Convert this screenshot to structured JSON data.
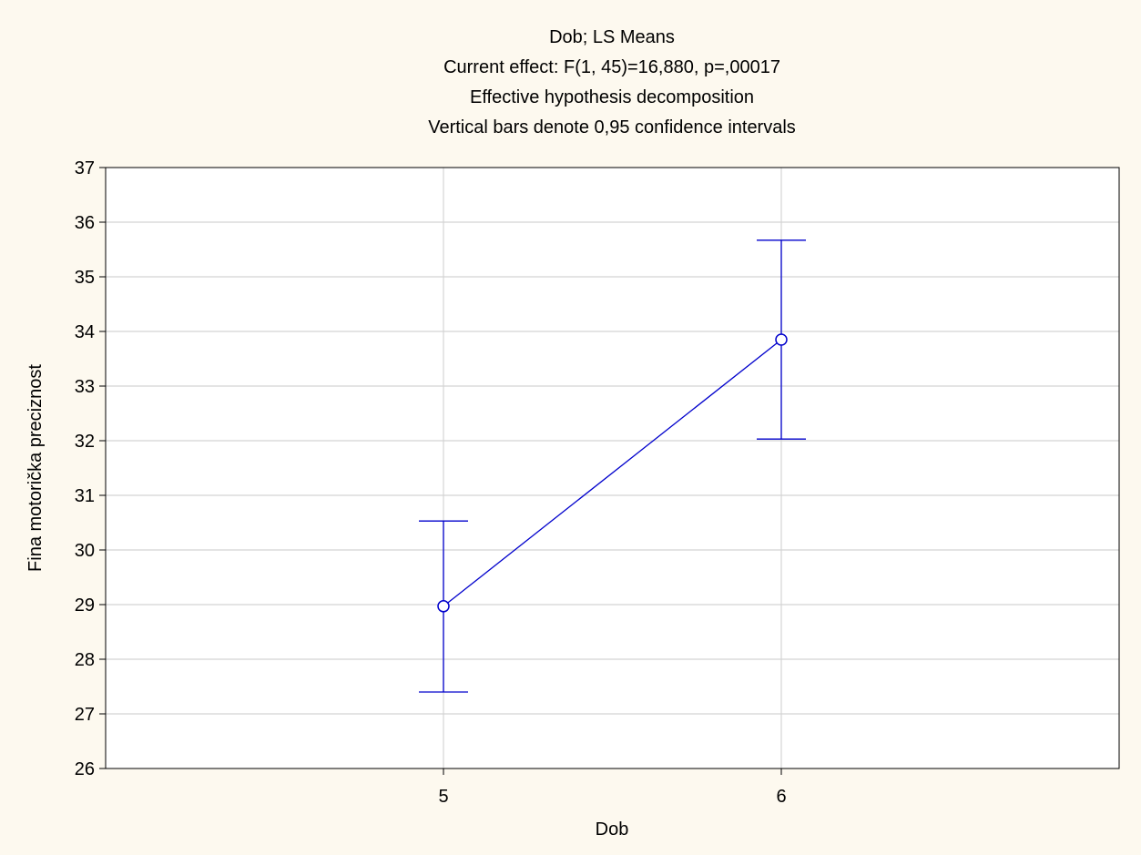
{
  "chart_data": {
    "type": "line",
    "title_lines": [
      "Dob; LS Means",
      "Current effect: F(1, 45)=16,880, p=,00017",
      "Effective hypothesis decomposition",
      "Vertical bars denote 0,95 confidence intervals"
    ],
    "xlabel": "Dob",
    "ylabel": "Fina motorička preciznost",
    "categories": [
      "5",
      "6"
    ],
    "series": [
      {
        "values": [
          28.97,
          33.85
        ],
        "ci_lower": [
          27.4,
          32.03
        ],
        "ci_upper": [
          30.53,
          35.67
        ]
      }
    ],
    "ylim": [
      26,
      37
    ],
    "yticks": [
      26,
      27,
      28,
      29,
      30,
      31,
      32,
      33,
      34,
      35,
      36,
      37
    ],
    "grid": true,
    "colors": {
      "background": "#fdf9ef",
      "plot_background": "#ffffff",
      "series": "#0000cc",
      "grid": "#d4d4d4",
      "axis": "#000000"
    }
  }
}
